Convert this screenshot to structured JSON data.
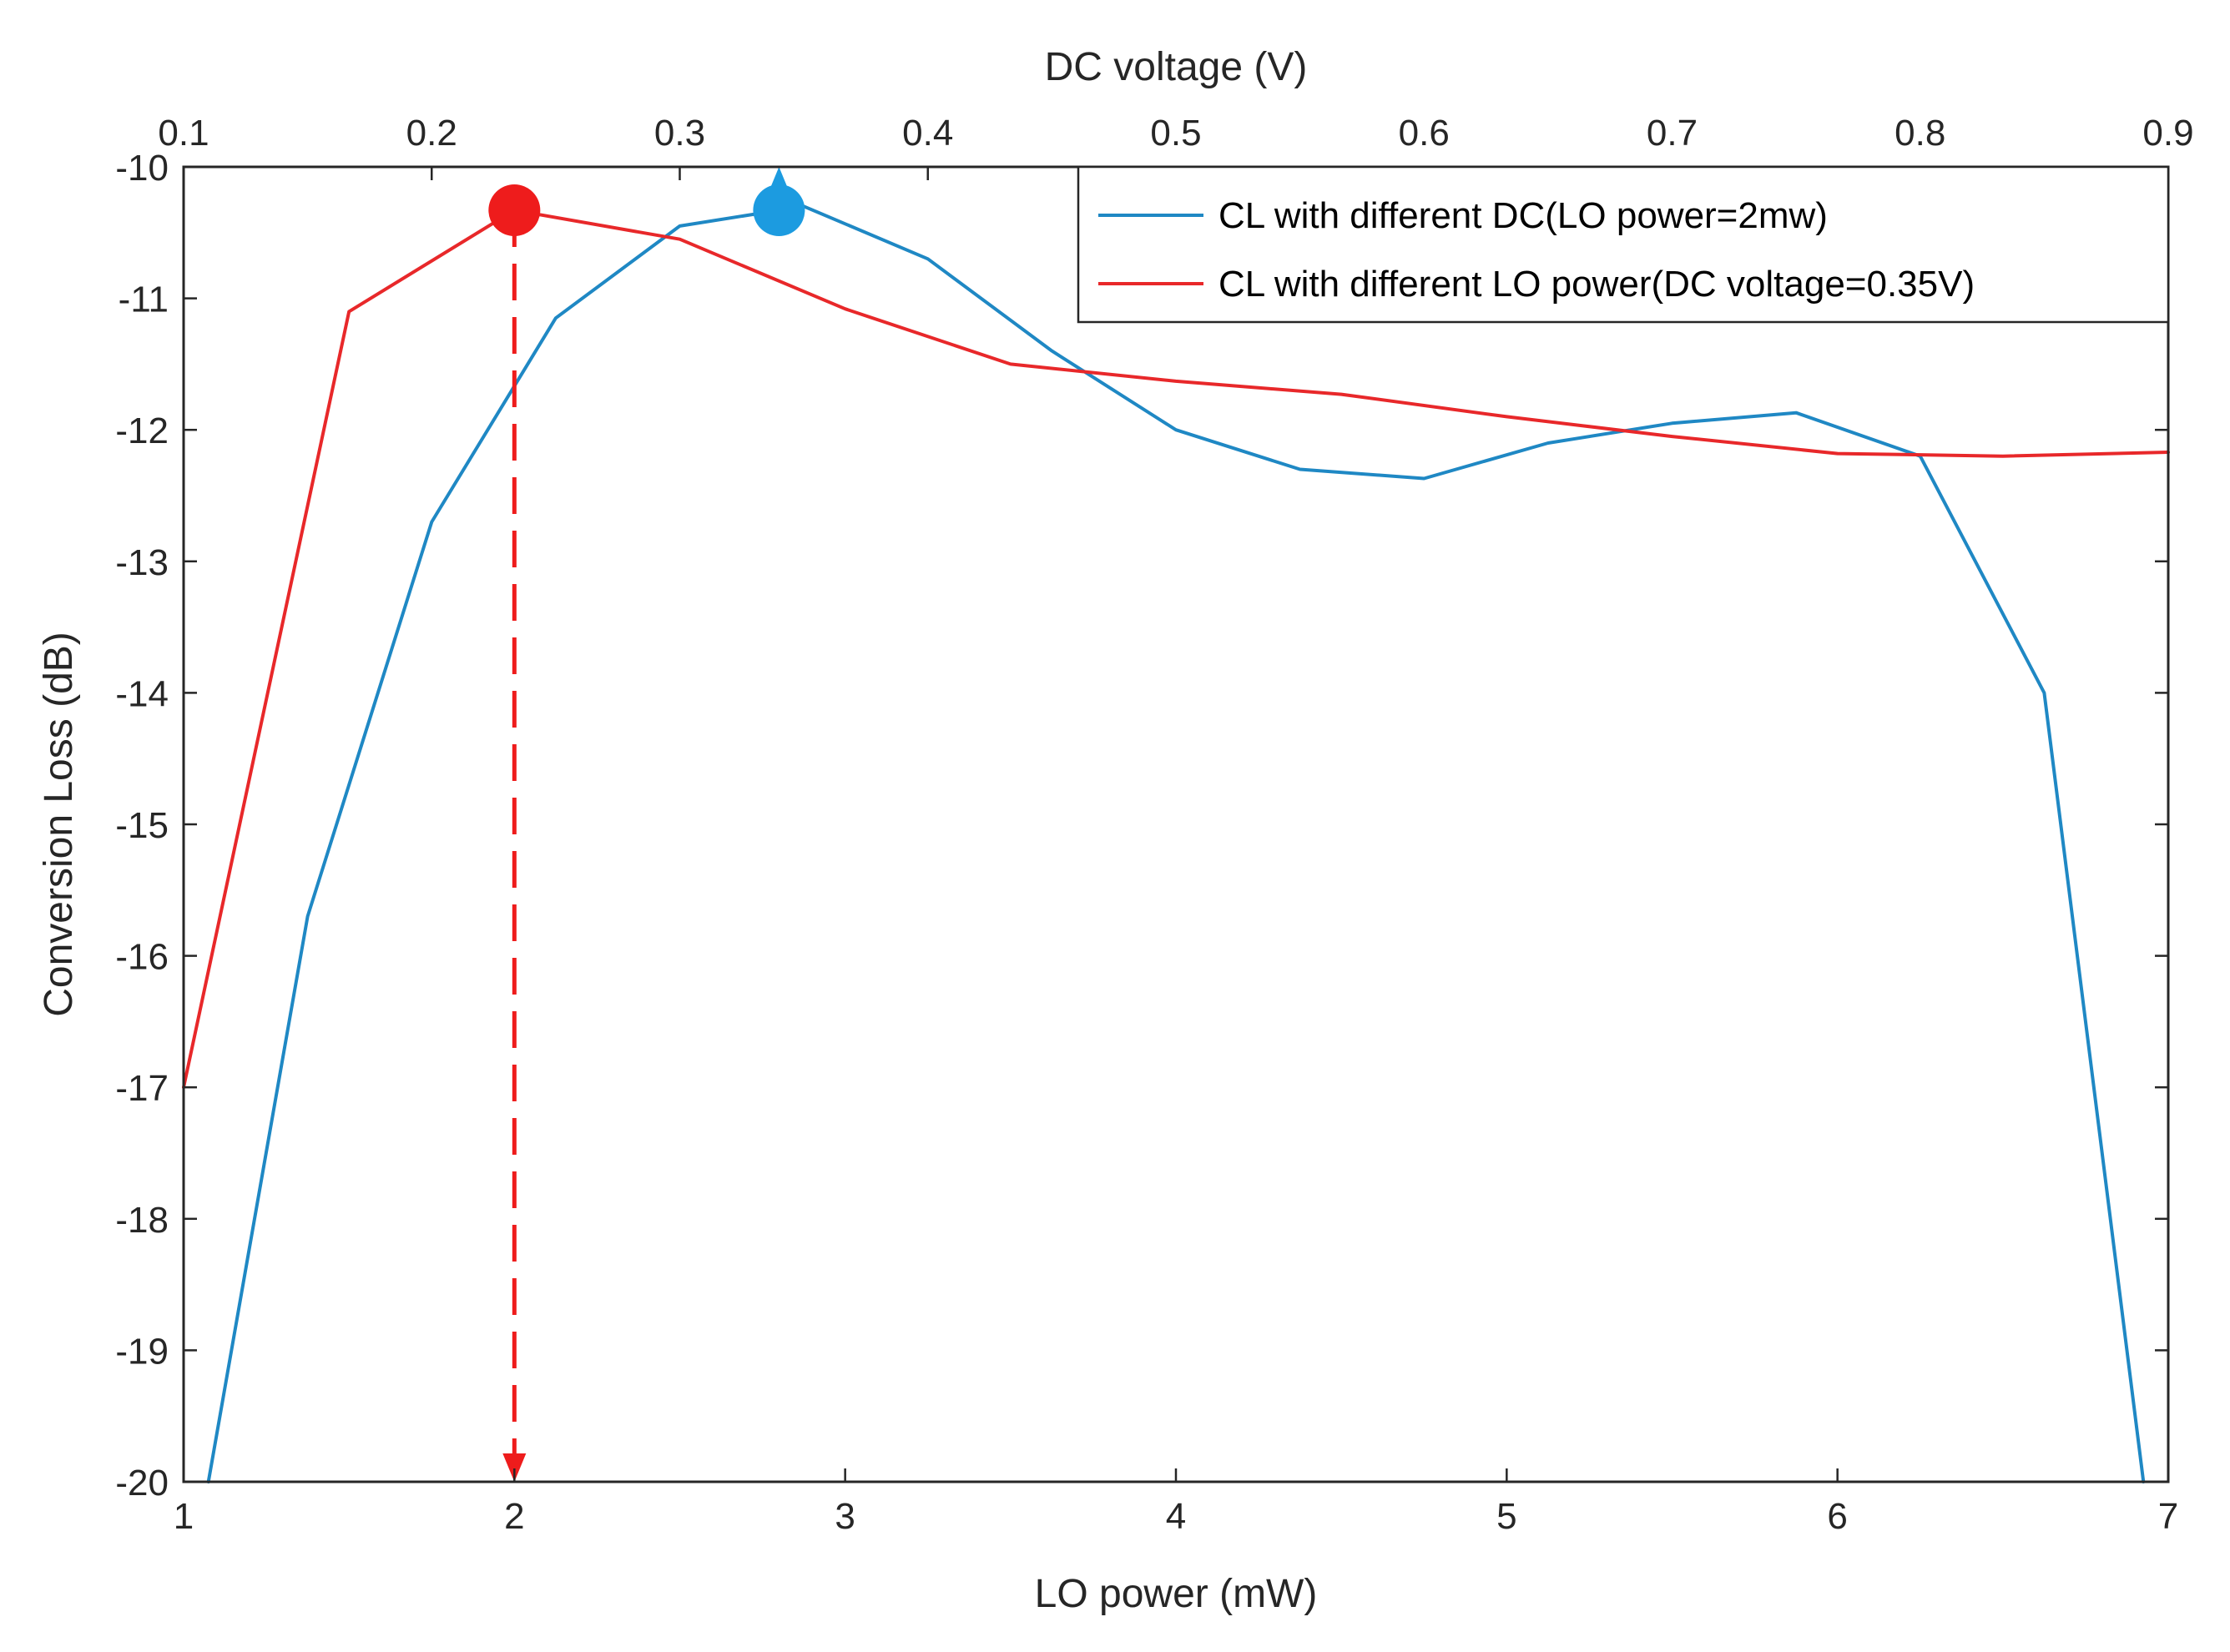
{
  "chart_data": {
    "type": "line",
    "title": "",
    "xlabel": "LO power (mW)",
    "x2label": "DC voltage (V)",
    "ylabel": "Conversion Loss (dB)",
    "xlim": [
      1,
      7
    ],
    "x2lim": [
      0.1,
      0.9
    ],
    "ylim": [
      -20,
      -10
    ],
    "x_ticks": [
      "1",
      "2",
      "3",
      "4",
      "5",
      "6",
      "7"
    ],
    "x2_ticks": [
      "0.1",
      "0.2",
      "0.3",
      "0.4",
      "0.5",
      "0.6",
      "0.7",
      "0.8",
      "0.9"
    ],
    "y_ticks": [
      "-10",
      "-11",
      "-12",
      "-13",
      "-14",
      "-15",
      "-16",
      "-17",
      "-18",
      "-19",
      "-20"
    ],
    "grid": false,
    "legend_position": "top-right",
    "series": [
      {
        "name": "CL with different DC(LO power=2mw)",
        "axis": "top",
        "color": "#1f88c4",
        "x": [
          0.11,
          0.15,
          0.2,
          0.25,
          0.3,
          0.35,
          0.4,
          0.45,
          0.5,
          0.55,
          0.6,
          0.65,
          0.7,
          0.75,
          0.8,
          0.85,
          0.89
        ],
        "y": [
          -20.0,
          -15.7,
          -12.7,
          -11.15,
          -10.45,
          -10.3,
          -10.7,
          -11.4,
          -12.0,
          -12.3,
          -12.37,
          -12.1,
          -11.95,
          -11.87,
          -12.2,
          -14.0,
          -20.0
        ]
      },
      {
        "name": "CL with different LO power(DC voltage=0.35V)",
        "axis": "bottom",
        "color": "#e8282a",
        "x": [
          1.0,
          1.5,
          2.0,
          2.5,
          3.0,
          3.5,
          4.0,
          4.5,
          5.0,
          5.5,
          6.0,
          6.5,
          7.0
        ],
        "y": [
          -17.0,
          -11.1,
          -10.33,
          -10.55,
          -11.08,
          -11.5,
          -11.63,
          -11.73,
          -11.9,
          -12.05,
          -12.18,
          -12.2,
          -12.17
        ]
      }
    ],
    "annotations": [
      {
        "type": "marker",
        "series": "CL with different LO power(DC voltage=0.35V)",
        "axis": "bottom",
        "x": 2.0,
        "y": -10.33,
        "color": "#ee1c1c"
      },
      {
        "type": "arrow",
        "style": "dashed",
        "direction": "down",
        "axis": "bottom",
        "x": 2.0,
        "from_y": -10.33,
        "to_y": -20.0,
        "color": "#ee1c1c"
      },
      {
        "type": "marker",
        "series": "CL with different DC(LO power=2mw)",
        "axis": "top",
        "x": 0.34,
        "y": -10.33,
        "color": "#1c9be0"
      },
      {
        "type": "arrow",
        "style": "solid",
        "direction": "up",
        "axis": "top",
        "x": 0.34,
        "from_y": -10.33,
        "to_y": -10.0,
        "color": "#1c9be0"
      }
    ]
  }
}
